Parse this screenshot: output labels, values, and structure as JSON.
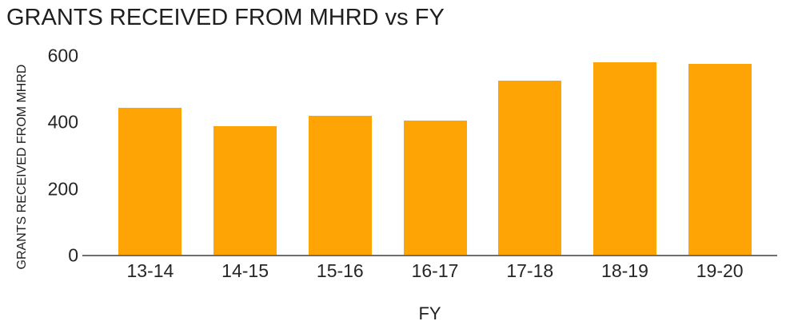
{
  "chart_data": {
    "type": "bar",
    "title": "GRANTS RECEIVED FROM MHRD vs FY",
    "xlabel": "FY",
    "ylabel": "GRANTS RECEIVED FROM MHRD",
    "categories": [
      "13-14",
      "14-15",
      "15-16",
      "16-17",
      "17-18",
      "18-19",
      "19-20"
    ],
    "values": [
      445,
      390,
      420,
      405,
      525,
      580,
      575
    ],
    "yticks": [
      0,
      200,
      400,
      600
    ],
    "ylim": [
      0,
      600
    ],
    "grid": false,
    "legend_position": "none",
    "colors": {
      "bar": "#FFA405",
      "axis_line": "#6e6e6e",
      "text": "#1f1f1f"
    }
  }
}
